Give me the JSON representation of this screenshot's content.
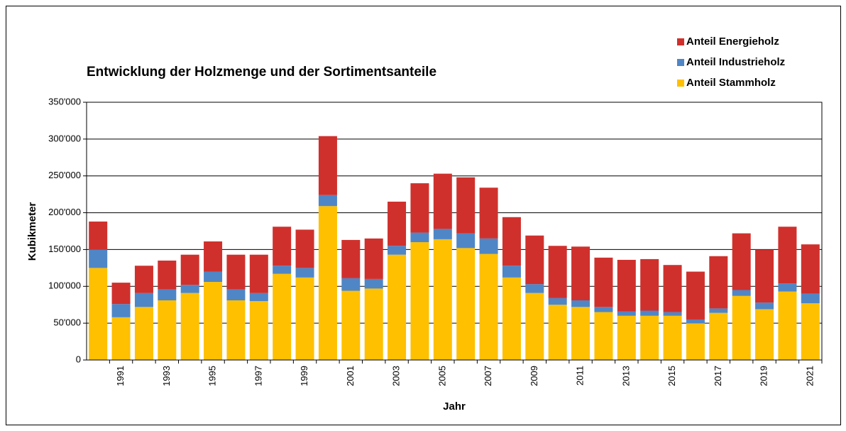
{
  "chart_data": {
    "type": "stacked_bar",
    "title": "Entwicklung der Holzmenge und der Sortimentsanteile",
    "x_label": "Jahr",
    "y_label": "Kubikmeter",
    "categories": [
      null,
      "1991",
      null,
      "1993",
      null,
      "1995",
      null,
      "1997",
      null,
      "1999",
      null,
      "2001",
      null,
      "2003",
      null,
      "2005",
      null,
      "2007",
      null,
      "2009",
      null,
      "2011",
      null,
      "2013",
      null,
      "2015",
      null,
      "2017",
      null,
      "2019",
      null,
      "2021"
    ],
    "series": [
      {
        "name": "Anteil Stammholz",
        "color": "#ffc000",
        "values": [
          125000,
          58000,
          72000,
          81000,
          91000,
          106000,
          81000,
          80000,
          117000,
          112000,
          209000,
          94000,
          97000,
          143000,
          160000,
          164000,
          152000,
          144000,
          112000,
          91000,
          75000,
          72000,
          65000,
          60000,
          60000,
          60000,
          50000,
          64000,
          87000,
          69000,
          93000,
          77000
        ]
      },
      {
        "name": "Anteil Industrieholz",
        "color": "#4f86c6",
        "values": [
          25000,
          18000,
          19000,
          15000,
          11000,
          14000,
          15000,
          11000,
          11000,
          13000,
          15000,
          17000,
          13000,
          12000,
          13000,
          14000,
          20000,
          21000,
          16000,
          12000,
          9000,
          9000,
          7000,
          6000,
          7000,
          5000,
          5000,
          6000,
          8000,
          9000,
          11000,
          13000
        ]
      },
      {
        "name": "Anteil Energieholz",
        "color": "#d0302c",
        "values": [
          38000,
          29000,
          37000,
          39000,
          41000,
          41000,
          47000,
          52000,
          53000,
          52000,
          80000,
          52000,
          55000,
          60000,
          67000,
          75000,
          76000,
          69000,
          66000,
          66000,
          71000,
          73000,
          67000,
          70000,
          70000,
          64000,
          65000,
          71000,
          77000,
          72000,
          77000,
          67000
        ]
      }
    ],
    "ylim": [
      0,
      350000
    ],
    "yticks": [
      0,
      {
        "value": 50000,
        "label": "50'000"
      },
      {
        "value": 100000,
        "label": "100'000"
      },
      {
        "value": 150000,
        "label": "150'000"
      },
      {
        "value": 200000,
        "label": "200'000"
      },
      {
        "value": 250000,
        "label": "250'000"
      },
      {
        "value": 300000,
        "label": "300'000"
      },
      {
        "value": 350000,
        "label": "350'000"
      }
    ],
    "grid": true,
    "legend": "top-right"
  }
}
